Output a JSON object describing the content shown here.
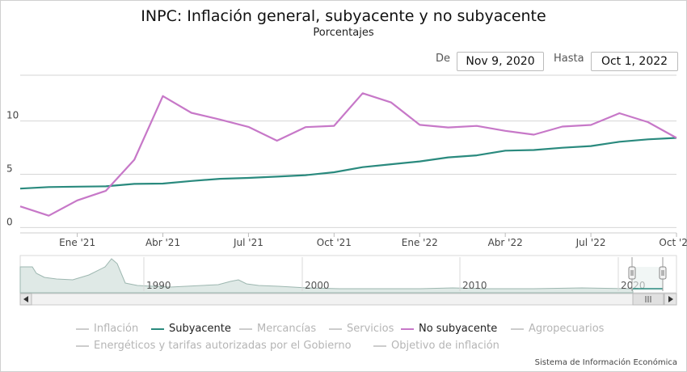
{
  "header": {
    "title": "INPC: Inflación general, subyacente y no subyacente",
    "subtitle": "Porcentajes"
  },
  "range_selector": {
    "from_label": "De",
    "from_value": "Nov 9, 2020",
    "to_label": "Hasta",
    "to_value": "Oct 1, 2022"
  },
  "chart_data": {
    "type": "line",
    "x": [
      "2020-11",
      "2020-12",
      "2021-01",
      "2021-02",
      "2021-03",
      "2021-04",
      "2021-05",
      "2021-06",
      "2021-07",
      "2021-08",
      "2021-09",
      "2021-10",
      "2021-11",
      "2021-12",
      "2022-01",
      "2022-02",
      "2022-03",
      "2022-04",
      "2022-05",
      "2022-06",
      "2022-07",
      "2022-08",
      "2022-09",
      "2022-10"
    ],
    "series": [
      {
        "name": "Subyacente",
        "color": "#2a8a7e",
        "values": [
          3.66,
          3.8,
          3.84,
          3.87,
          4.1,
          4.13,
          4.37,
          4.58,
          4.66,
          4.78,
          4.92,
          5.19,
          5.67,
          5.94,
          6.21,
          6.59,
          6.78,
          7.22,
          7.28,
          7.49,
          7.65,
          8.05,
          8.28,
          8.42
        ]
      },
      {
        "name": "No subyacente",
        "color": "#c778c8",
        "values": [
          1.99,
          1.12,
          2.55,
          3.45,
          6.37,
          12.34,
          10.77,
          10.14,
          9.45,
          8.15,
          9.43,
          9.55,
          12.61,
          11.74,
          9.64,
          9.4,
          9.54,
          9.08,
          8.72,
          9.48,
          9.63,
          10.73,
          9.9,
          8.42
        ]
      }
    ],
    "y_ticks": [
      0,
      5,
      10
    ],
    "ylim": [
      -0.5,
      14.3
    ],
    "x_ticks": [
      {
        "label": "Ene '21",
        "x": "2021-01"
      },
      {
        "label": "Abr '21",
        "x": "2021-04"
      },
      {
        "label": "Jul '21",
        "x": "2021-07"
      },
      {
        "label": "Oct '21",
        "x": "2021-10"
      },
      {
        "label": "Ene '22",
        "x": "2022-01"
      },
      {
        "label": "Abr '22",
        "x": "2022-04"
      },
      {
        "label": "Jul '22",
        "x": "2022-07"
      },
      {
        "label": "Oct '22",
        "x": "2022-10"
      }
    ],
    "grid": true,
    "navigator": {
      "years": [
        "1990",
        "2000",
        "2010",
        "2020"
      ],
      "handle_icon": "grip-handle-icon",
      "scroll_left_icon": "arrow-left-icon",
      "scroll_right_icon": "arrow-right-icon",
      "scroll_thumb_icon": "grip-icon"
    },
    "legend": [
      {
        "name": "Inflación",
        "active": false
      },
      {
        "name": "Subyacente",
        "active": true,
        "color": "#2a8a7e"
      },
      {
        "name": "Mercancías",
        "active": false
      },
      {
        "name": "Servicios",
        "active": false
      },
      {
        "name": "No subyacente",
        "active": true,
        "color": "#c778c8"
      },
      {
        "name": "Agropecuarios",
        "active": false
      },
      {
        "name": "Energéticos y tarifas autorizadas por el Gobierno",
        "active": false
      },
      {
        "name": "Objetivo de inflación",
        "active": false
      }
    ],
    "legend_position": "bottom",
    "inactive_color": "#cccccc"
  },
  "footer": {
    "credit": "Sistema de Información Económica"
  }
}
